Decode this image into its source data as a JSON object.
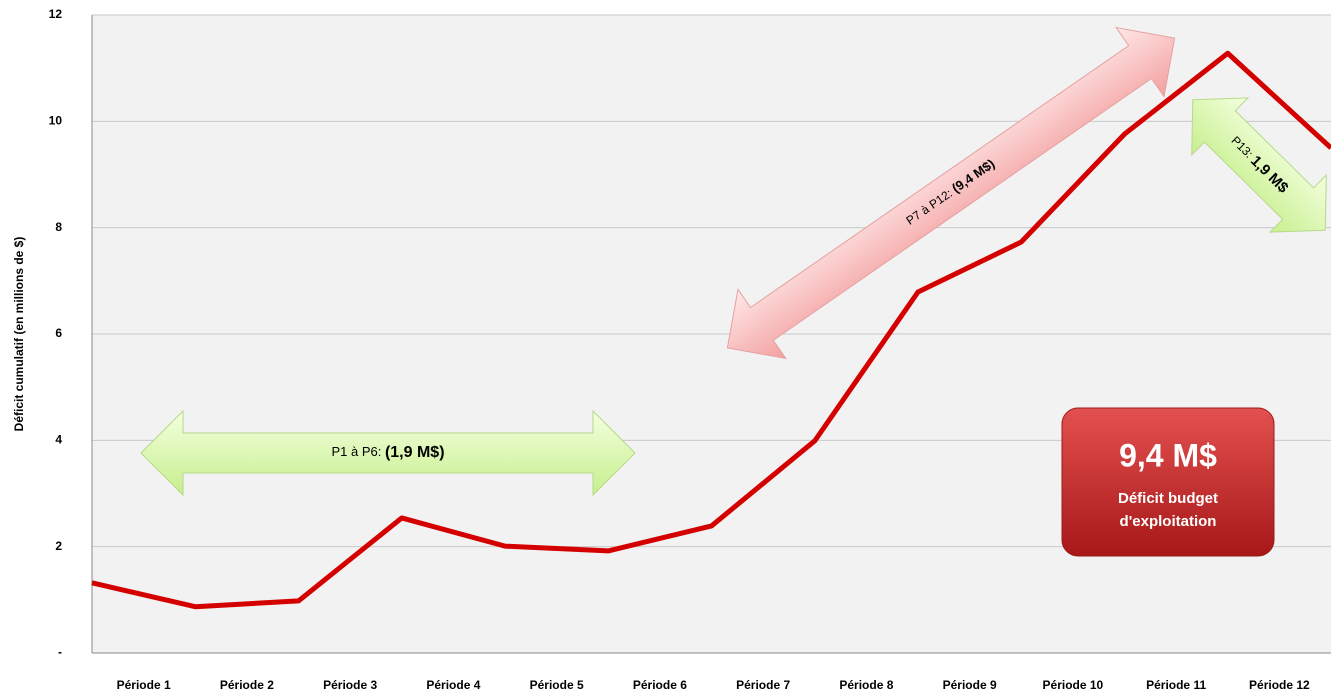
{
  "chart_data": {
    "type": "line",
    "y_label": "Déficit cumulatif (en millions de $)",
    "categories": [
      "Période 1",
      "Période 2",
      "Période 3",
      "Période 4",
      "Période 5",
      "Période 6",
      "Période 7",
      "Période 8",
      "Période 9",
      "Période 10",
      "Période 11",
      "Période 12",
      null
    ],
    "series": [
      {
        "name": "Déficit cumulatif",
        "color": "#d40000",
        "values": [
          1.32,
          0.87,
          0.98,
          2.54,
          2.01,
          1.92,
          2.39,
          3.99,
          6.79,
          7.73,
          9.76,
          11.28,
          9.5
        ]
      }
    ],
    "ylim": [
      0,
      12
    ],
    "yticks": [
      {
        "value": 0,
        "label": "-"
      },
      2,
      4,
      6,
      8,
      10,
      12
    ],
    "grid": true,
    "annotations": [
      {
        "text": "P1 à P6: ",
        "bold": "(1,9 M$)"
      },
      {
        "text": "P7 à P12: ",
        "bold": "(9,4 M$)"
      },
      {
        "text": "P13: ",
        "bold": "1,9 M$"
      }
    ],
    "callout": {
      "value": "9,4 M$",
      "line1": "Déficit budget",
      "line2": "d'exploitation"
    }
  }
}
